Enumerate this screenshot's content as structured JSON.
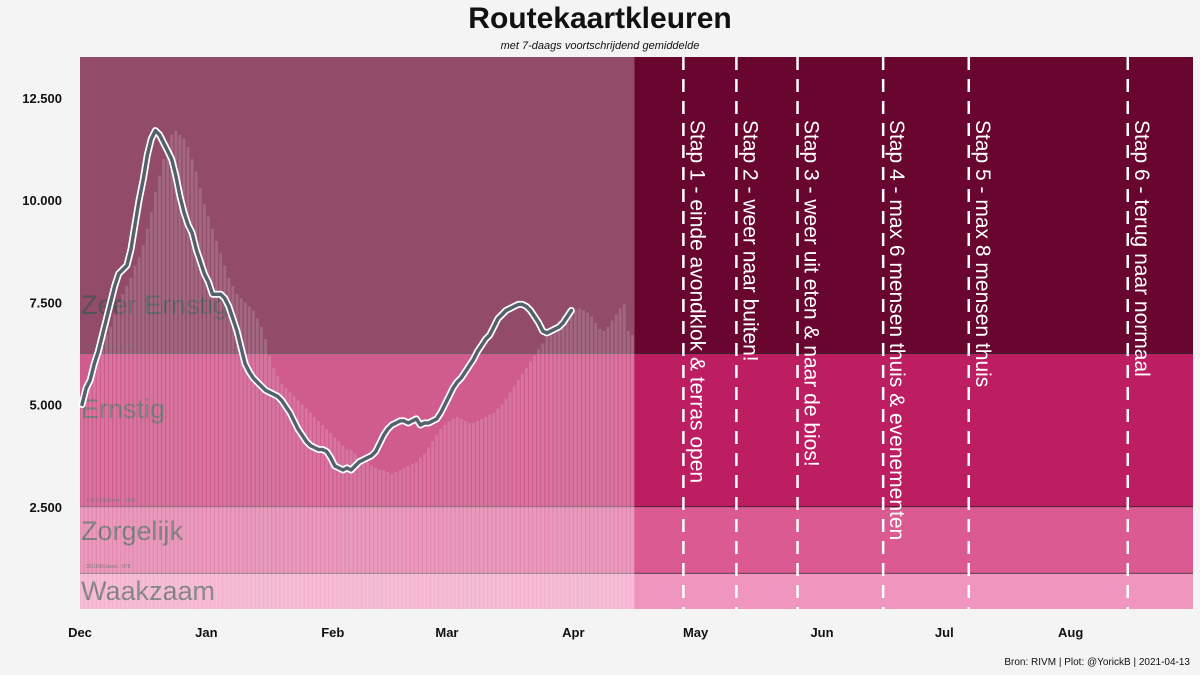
{
  "title": "Routekaartkleuren",
  "subtitle": "met 7-daags voortschrijdend gemiddelde",
  "caption": "Bron: RIVM | Plot: @YorickB  |  2021-04-13",
  "colors": {
    "zeer_ernstig": "#680630",
    "ernstig": "#bd1e62",
    "zorgelijk": "#db5a92",
    "waakzaam": "#f095bd",
    "data_overlay": "#ffffff",
    "line": "#55606d",
    "line_halo": "#ffffff"
  },
  "chart_data": {
    "type": "bar",
    "x_axis": {
      "start": "2020-12-01",
      "end": "2021-08-31",
      "tick_labels": [
        "Dec",
        "Jan",
        "Feb",
        "Mar",
        "Apr",
        "May",
        "Jun",
        "Jul",
        "Aug"
      ],
      "tick_dates": [
        "2020-12-01",
        "2021-01-01",
        "2021-02-01",
        "2021-03-01",
        "2021-04-01",
        "2021-05-01",
        "2021-06-01",
        "2021-07-01",
        "2021-08-01"
      ]
    },
    "y_axis": {
      "ylim": [
        0,
        13500
      ],
      "tick_values": [
        2500,
        5000,
        7500,
        10000,
        12500
      ],
      "tick_labels": [
        "2.500",
        "5.000",
        "7.500",
        "10.000",
        "12.500"
      ]
    },
    "zones": [
      {
        "name": "Waakzaam",
        "from": 0,
        "to": 875,
        "threshold_label": "35/100K/week - 875"
      },
      {
        "name": "Zorgelijk",
        "from": 875,
        "to": 2500,
        "threshold_label": "100/100K/week - 2500"
      },
      {
        "name": "Ernstig",
        "from": 2500,
        "to": 6250,
        "threshold_label": "250/100K/week - 6250"
      },
      {
        "name": "Zeer Ernstig",
        "from": 6250,
        "to": 13500,
        "threshold_label": ""
      }
    ],
    "steps": [
      {
        "date": "2021-04-28",
        "label": "Stap 1 - einde avondklok & terras open"
      },
      {
        "date": "2021-05-11",
        "label": "Stap 2 - weer naar buiten!"
      },
      {
        "date": "2021-05-26",
        "label": "Stap 3 - weer uit eten & naar de bios!"
      },
      {
        "date": "2021-06-16",
        "label": "Stap 4 - max 6 mensen thuis & evenementen"
      },
      {
        "date": "2021-07-07",
        "label": "Stap 5 - max 8 mensen thuis"
      },
      {
        "date": "2021-08-15",
        "label": "Stap 6 - terug naar normaal"
      }
    ],
    "series": [
      {
        "kind": "daily_cases_bars",
        "start": "2020-12-01",
        "values": [
          4900,
          5300,
          5500,
          6000,
          6200,
          6400,
          6700,
          6900,
          7200,
          7500,
          7700,
          7900,
          8100,
          8400,
          8600,
          8900,
          9300,
          9700,
          10200,
          10600,
          11000,
          11400,
          11600,
          11700,
          11600,
          11500,
          11300,
          11000,
          10700,
          10300,
          9900,
          9600,
          9300,
          9000,
          8700,
          8400,
          8100,
          7900,
          7700,
          7600,
          7500,
          7400,
          7300,
          7100,
          6900,
          6600,
          6200,
          5900,
          5700,
          5500,
          5400,
          5300,
          5200,
          5100,
          5000,
          4900,
          4800,
          4700,
          4600,
          4500,
          4400,
          4300,
          4200,
          4100,
          4000,
          3900,
          3900,
          3800,
          3700,
          3650,
          3600,
          3500,
          3450,
          3400,
          3400,
          3350,
          3300,
          3350,
          3400,
          3450,
          3500,
          3550,
          3600,
          3700,
          3800,
          3950,
          4100,
          4250,
          4400,
          4500,
          4600,
          4650,
          4700,
          4650,
          4600,
          4550,
          4550,
          4600,
          4650,
          4700,
          4750,
          4800,
          4900,
          5000,
          5150,
          5300,
          5450,
          5600,
          5750,
          5900,
          6050,
          6200,
          6350,
          6500,
          6650,
          6800,
          6950,
          7050,
          7150,
          7200,
          7250,
          7300,
          7350,
          7300,
          7250,
          7150,
          7000,
          6850,
          6800,
          6900,
          7050,
          7200,
          7350,
          7450,
          6800,
          6700
        ]
      },
      {
        "kind": "7_day_average_line",
        "start": "2020-12-01",
        "values": [
          5000,
          5400,
          5600,
          6000,
          6300,
          6700,
          7100,
          7500,
          7900,
          8200,
          8300,
          8400,
          8800,
          9400,
          10000,
          10500,
          11100,
          11500,
          11700,
          11600,
          11400,
          11200,
          11000,
          10600,
          10100,
          9700,
          9400,
          9200,
          8800,
          8500,
          8200,
          8000,
          7700,
          7700,
          7700,
          7600,
          7400,
          7100,
          6800,
          6400,
          6000,
          5800,
          5650,
          5550,
          5450,
          5350,
          5300,
          5250,
          5200,
          5100,
          4950,
          4800,
          4600,
          4400,
          4250,
          4100,
          4000,
          3950,
          3900,
          3900,
          3850,
          3700,
          3500,
          3450,
          3400,
          3450,
          3400,
          3500,
          3600,
          3650,
          3700,
          3750,
          3850,
          4050,
          4250,
          4400,
          4500,
          4550,
          4600,
          4600,
          4550,
          4600,
          4650,
          4500,
          4550,
          4550,
          4600,
          4650,
          4800,
          5000,
          5200,
          5400,
          5550,
          5650,
          5800,
          5950,
          6100,
          6300,
          6450,
          6600,
          6700,
          6900,
          7100,
          7200,
          7300,
          7350,
          7400,
          7450,
          7450,
          7400,
          7300,
          7150,
          7000,
          6800,
          6750,
          6800,
          6850,
          6900,
          7000,
          7150,
          7300
        ]
      }
    ],
    "legend": "none",
    "grid": false
  }
}
